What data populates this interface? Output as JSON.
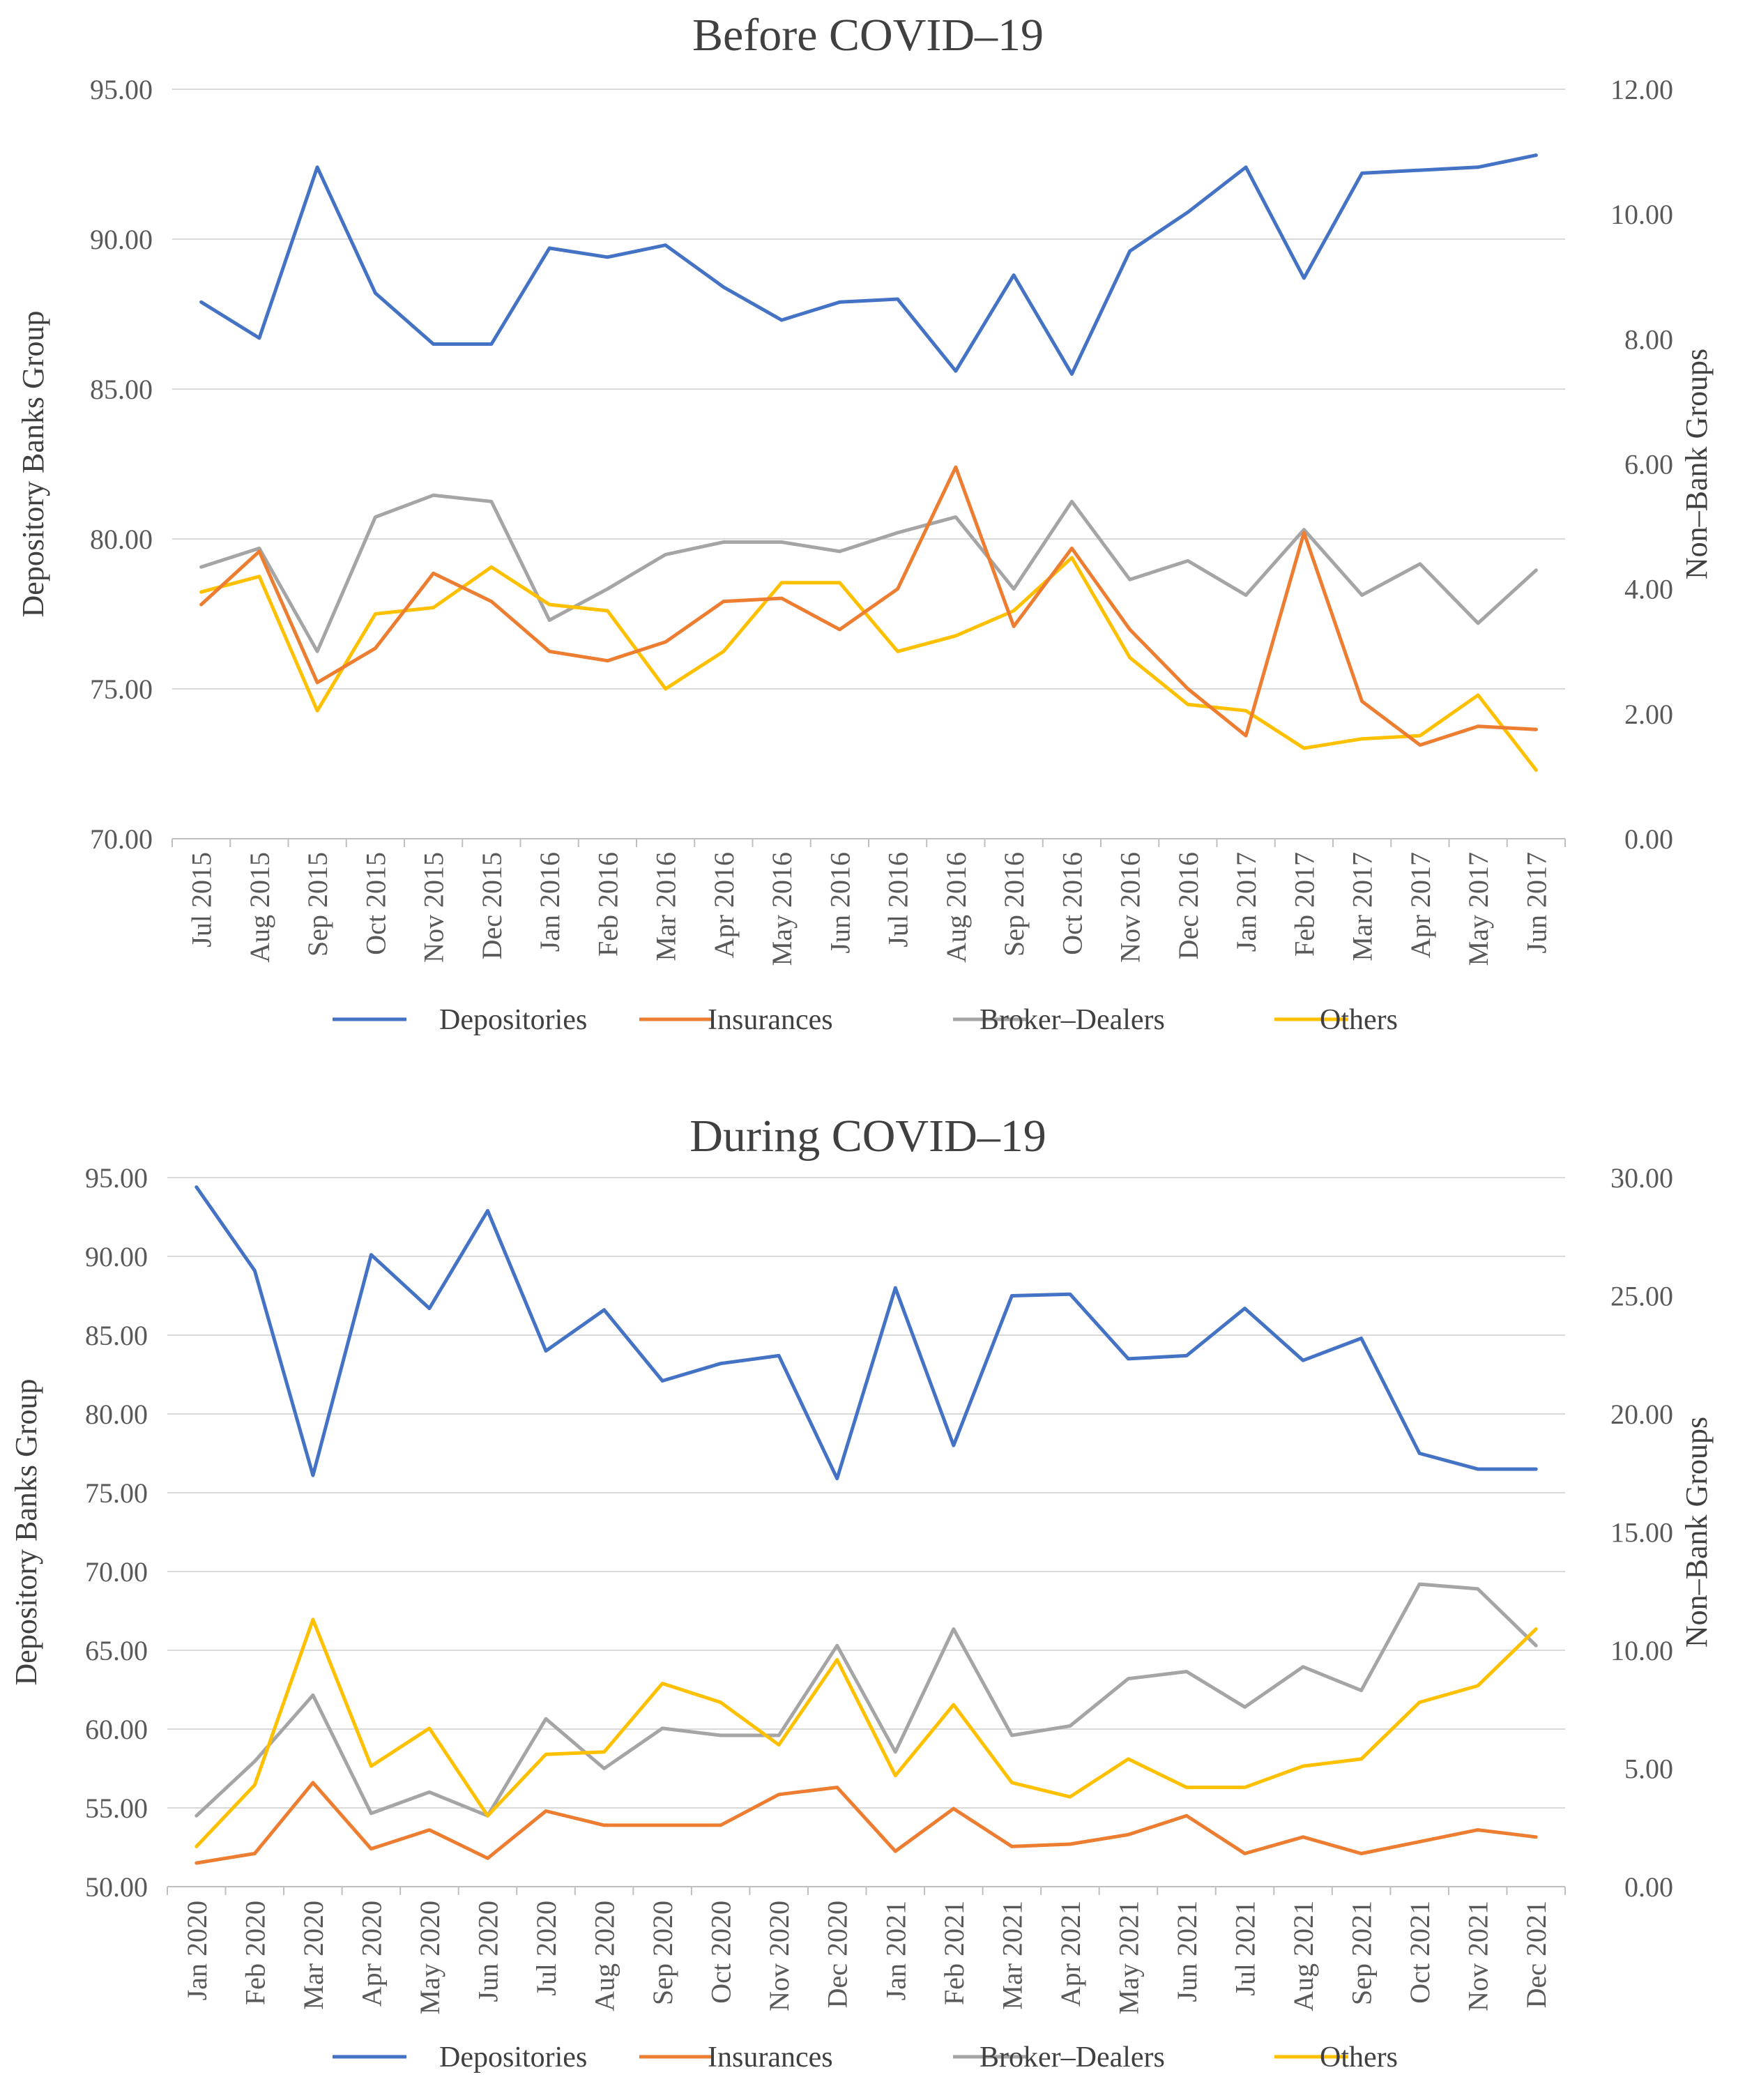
{
  "chart_data": [
    {
      "type": "line",
      "title": "Before COVID–19",
      "ylabel": "Depository Banks Group",
      "y2label": "Non–Bank Groups",
      "ylim": [
        70,
        95
      ],
      "y2lim": [
        0,
        12
      ],
      "yticks": [
        "70.00",
        "75.00",
        "80.00",
        "85.00",
        "90.00",
        "95.00"
      ],
      "y2ticks": [
        "0.00",
        "2.00",
        "4.00",
        "6.00",
        "8.00",
        "10.00",
        "12.00"
      ],
      "categories": [
        "Jul 2015",
        "Aug 2015",
        "Sep 2015",
        "Oct 2015",
        "Nov 2015",
        "Dec 2015",
        "Jan 2016",
        "Feb 2016",
        "Mar 2016",
        "Apr 2016",
        "May 2016",
        "Jun 2016",
        "Jul 2016",
        "Aug 2016",
        "Sep 2016",
        "Oct 2016",
        "Nov 2016",
        "Dec 2016",
        "Jan 2017",
        "Feb 2017",
        "Mar 2017",
        "Apr 2017",
        "May 2017",
        "Jun 2017"
      ],
      "legend_position": "bottom",
      "grid": true,
      "series": [
        {
          "name": "Depositories",
          "axis": "left",
          "color": "#4472C4",
          "values": [
            87.9,
            86.7,
            92.4,
            88.2,
            86.5,
            86.5,
            89.7,
            89.4,
            89.8,
            88.4,
            87.3,
            87.9,
            88.0,
            85.6,
            88.8,
            85.5,
            89.6,
            90.9,
            92.4,
            88.7,
            92.2,
            92.3,
            92.4,
            92.8
          ]
        },
        {
          "name": "Insurances",
          "axis": "right",
          "color": "#ED7D31",
          "values": [
            3.75,
            4.6,
            2.5,
            3.05,
            4.25,
            3.8,
            3.0,
            2.85,
            3.15,
            3.8,
            3.85,
            3.35,
            4.0,
            5.95,
            3.4,
            4.65,
            3.35,
            2.4,
            1.65,
            4.9,
            2.2,
            1.5,
            1.8,
            1.75
          ]
        },
        {
          "name": "Broker–Dealers",
          "axis": "right",
          "color": "#A5A5A5",
          "values": [
            4.35,
            4.65,
            3.0,
            5.15,
            5.5,
            5.4,
            3.5,
            4.0,
            4.55,
            4.75,
            4.75,
            4.6,
            4.9,
            5.15,
            4.0,
            5.4,
            4.15,
            4.45,
            3.9,
            4.95,
            3.9,
            4.4,
            3.45,
            4.3
          ]
        },
        {
          "name": "Others",
          "axis": "right",
          "color": "#FFC000",
          "values": [
            3.95,
            4.2,
            2.05,
            3.6,
            3.7,
            4.35,
            3.75,
            3.65,
            2.4,
            3.0,
            4.1,
            4.1,
            3.0,
            3.25,
            3.65,
            4.5,
            2.9,
            2.15,
            2.05,
            1.45,
            1.6,
            1.65,
            2.3,
            1.1
          ]
        }
      ]
    },
    {
      "type": "line",
      "title": "During COVID–19",
      "ylabel": "Depository Banks Group",
      "y2label": "Non–Bank Groups",
      "ylim": [
        50,
        95
      ],
      "y2lim": [
        0,
        30
      ],
      "yticks": [
        "50.00",
        "55.00",
        "60.00",
        "65.00",
        "70.00",
        "75.00",
        "80.00",
        "85.00",
        "90.00",
        "95.00"
      ],
      "y2ticks": [
        "0.00",
        "5.00",
        "10.00",
        "15.00",
        "20.00",
        "25.00",
        "30.00"
      ],
      "categories": [
        "Jan 2020",
        "Feb 2020",
        "Mar 2020",
        "Apr 2020",
        "May 2020",
        "Jun 2020",
        "Jul 2020",
        "Aug 2020",
        "Sep 2020",
        "Oct 2020",
        "Nov 2020",
        "Dec 2020",
        "Jan 2021",
        "Feb 2021",
        "Mar 2021",
        "Apr 2021",
        "May 2021",
        "Jun 2021",
        "Jul 2021",
        "Aug 2021",
        "Sep 2021",
        "Oct 2021",
        "Nov 2021",
        "Dec 2021"
      ],
      "legend_position": "bottom",
      "grid": true,
      "series": [
        {
          "name": "Depositories",
          "axis": "left",
          "color": "#4472C4",
          "values": [
            94.4,
            89.1,
            76.1,
            90.1,
            86.7,
            92.9,
            84.0,
            86.6,
            82.1,
            83.2,
            83.7,
            75.9,
            88.0,
            78.0,
            87.5,
            87.6,
            83.5,
            83.7,
            86.7,
            83.4,
            84.8,
            77.5,
            76.5,
            76.5
          ]
        },
        {
          "name": "Insurances",
          "axis": "right",
          "color": "#ED7D31",
          "values": [
            1.0,
            1.4,
            4.4,
            1.6,
            2.4,
            1.2,
            3.2,
            2.6,
            2.6,
            2.6,
            3.9,
            4.2,
            1.5,
            3.3,
            1.7,
            1.8,
            2.2,
            3.0,
            1.4,
            2.1,
            1.4,
            1.9,
            2.4,
            2.1
          ]
        },
        {
          "name": "Broker–Dealers",
          "axis": "right",
          "color": "#A5A5A5",
          "values": [
            3.0,
            5.3,
            8.1,
            3.1,
            4.0,
            3.0,
            7.1,
            5.0,
            6.7,
            6.4,
            6.4,
            10.2,
            5.7,
            10.9,
            6.4,
            6.8,
            8.8,
            9.1,
            7.6,
            9.3,
            8.3,
            12.8,
            12.6,
            10.2
          ]
        },
        {
          "name": "Others",
          "axis": "right",
          "color": "#FFC000",
          "values": [
            1.7,
            4.3,
            11.3,
            5.1,
            6.7,
            3.0,
            5.6,
            5.7,
            8.6,
            7.8,
            6.0,
            9.6,
            4.7,
            7.7,
            4.4,
            3.8,
            5.4,
            4.2,
            4.2,
            5.1,
            5.4,
            7.8,
            8.5,
            10.9
          ]
        }
      ]
    }
  ]
}
